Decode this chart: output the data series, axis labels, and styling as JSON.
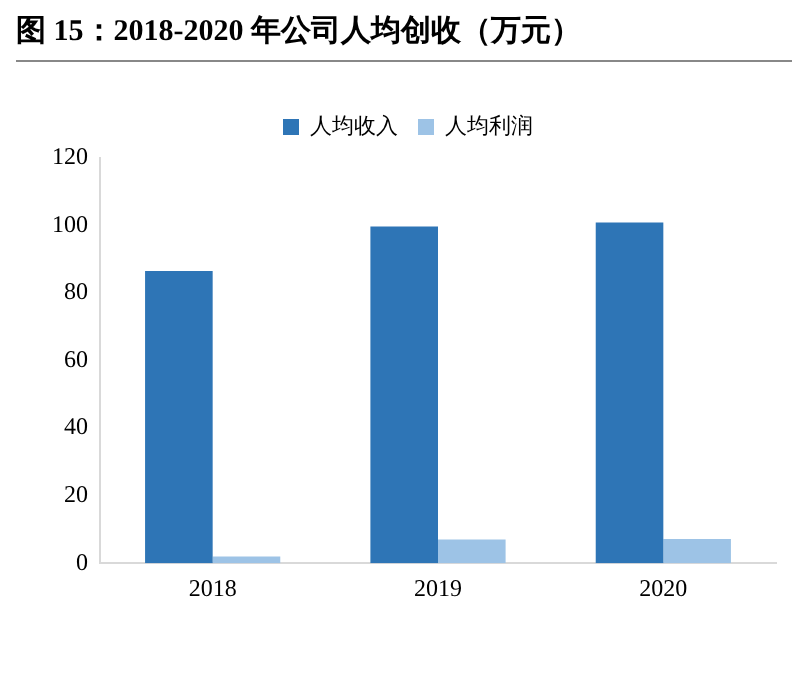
{
  "chart_data": {
    "type": "bar",
    "title": "图 15：2018-2020 年公司人均创收（万元）",
    "categories": [
      "2018",
      "2019",
      "2020"
    ],
    "series": [
      {
        "name": "人均收入",
        "color": "#2e75b6",
        "values": [
          86.5,
          99.7,
          100.9
        ]
      },
      {
        "name": "人均利润",
        "color": "#9dc3e6",
        "values": [
          2.0,
          7.0,
          7.2
        ]
      }
    ],
    "ylim": [
      0,
      120
    ],
    "yticks": [
      0,
      20,
      40,
      60,
      80,
      100,
      120
    ],
    "grid": false,
    "legend": "top"
  }
}
